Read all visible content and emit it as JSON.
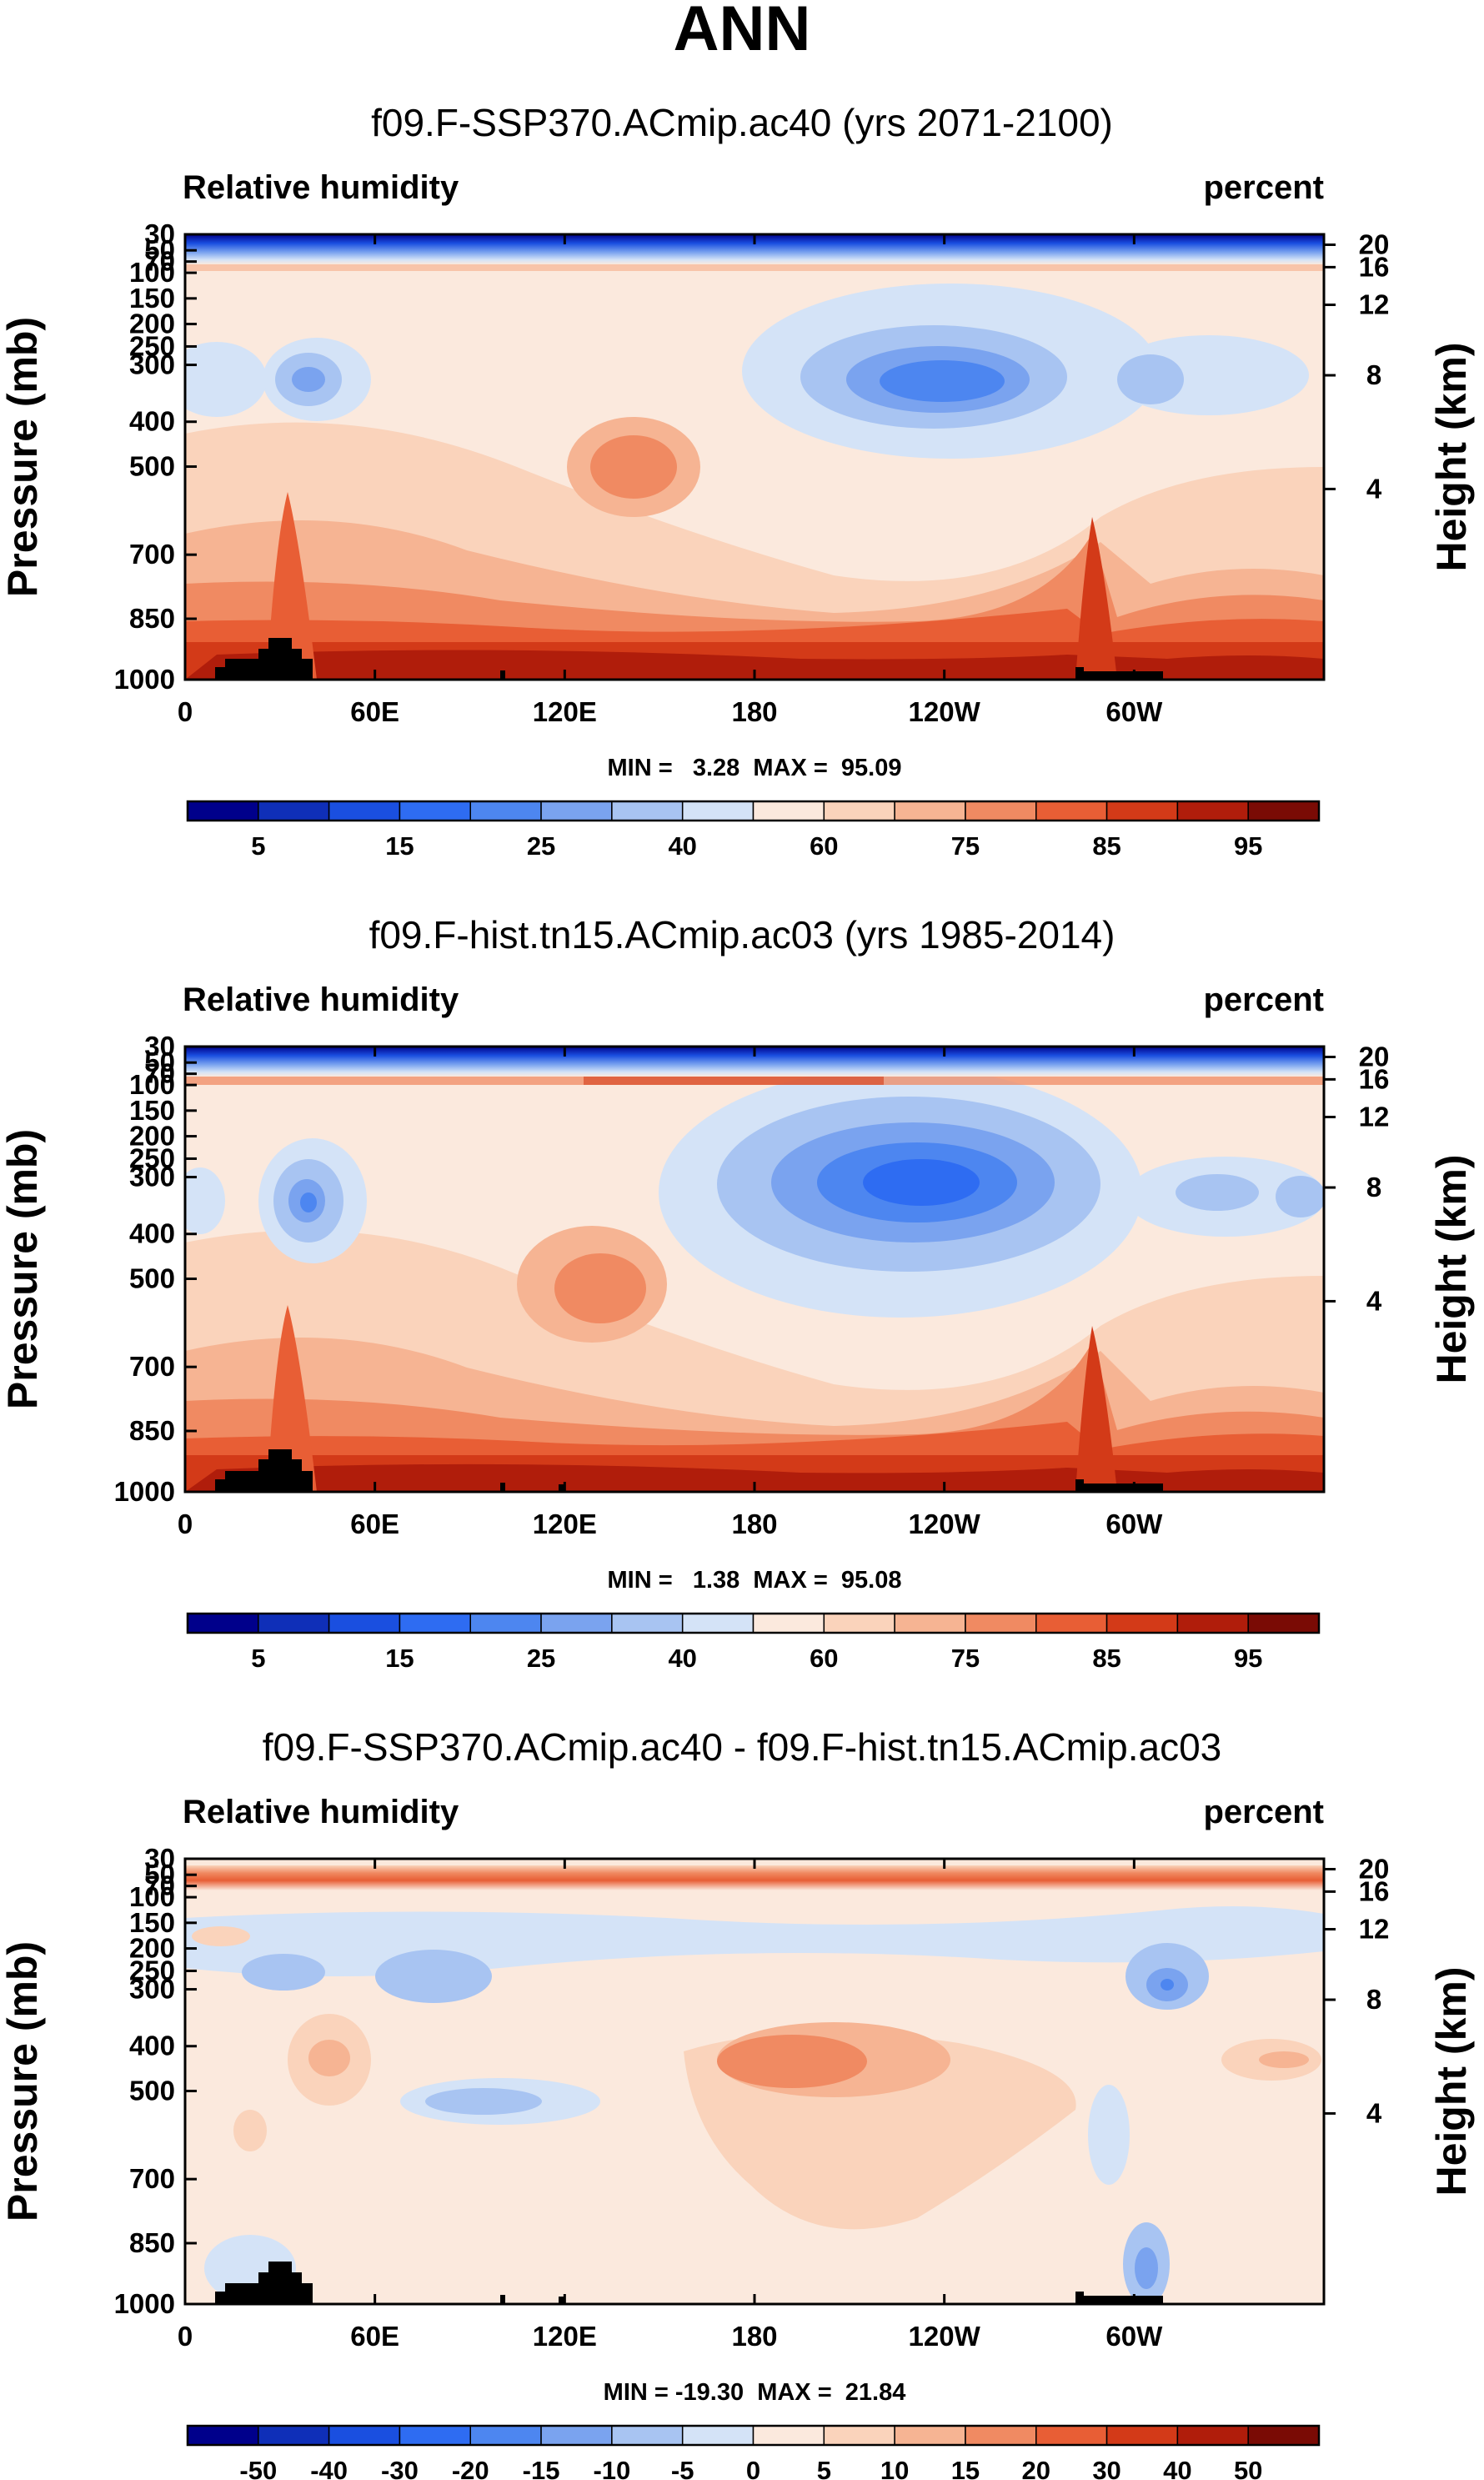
{
  "figure_title": "ANN",
  "chart_data": [
    {
      "type": "heatmap",
      "title": "f09.F-SSP370.ACmip.ac40 (yrs 2071-2100)",
      "variable_label": "Relative humidity",
      "units_label": "percent",
      "xlabel": "",
      "ylabel": "Pressure (mb)",
      "ylabel_right": "Height (km)",
      "x_ticks": [
        "0",
        "60E",
        "120E",
        "180",
        "120W",
        "60W"
      ],
      "y_ticks": [
        "30",
        "50",
        "70",
        "100",
        "150",
        "200",
        "250",
        "300",
        "400",
        "500",
        "700",
        "850",
        "1000"
      ],
      "y_right_ticks": [
        "20",
        "16",
        "12",
        "8",
        "4"
      ],
      "min_max_text": "MIN =   3.28  MAX =  95.09",
      "colorbar": {
        "levels": [
          5,
          10,
          15,
          20,
          25,
          30,
          40,
          50,
          60,
          70,
          75,
          80,
          85,
          90,
          95
        ],
        "labels": [
          "5",
          "15",
          "25",
          "40",
          "60",
          "75",
          "85",
          "95"
        ],
        "colors": [
          "#00008b",
          "#0f2fb8",
          "#1a4fe0",
          "#2e6cf2",
          "#4d86f0",
          "#7aa3ef",
          "#a8c4f2",
          "#d4e3f7",
          "#fbe9dd",
          "#fad3bb",
          "#f6b493",
          "#f08a62",
          "#e85e35",
          "#d33a18",
          "#b01d0b",
          "#7a0b05"
        ]
      }
    },
    {
      "type": "heatmap",
      "title": "f09.F-hist.tn15.ACmip.ac03 (yrs 1985-2014)",
      "variable_label": "Relative humidity",
      "units_label": "percent",
      "xlabel": "",
      "ylabel": "Pressure (mb)",
      "ylabel_right": "Height (km)",
      "x_ticks": [
        "0",
        "60E",
        "120E",
        "180",
        "120W",
        "60W"
      ],
      "y_ticks": [
        "30",
        "50",
        "70",
        "100",
        "150",
        "200",
        "250",
        "300",
        "400",
        "500",
        "700",
        "850",
        "1000"
      ],
      "y_right_ticks": [
        "20",
        "16",
        "12",
        "8",
        "4"
      ],
      "min_max_text": "MIN =   1.38  MAX =  95.08",
      "colorbar": {
        "levels": [
          5,
          10,
          15,
          20,
          25,
          30,
          40,
          50,
          60,
          70,
          75,
          80,
          85,
          90,
          95
        ],
        "labels": [
          "5",
          "15",
          "25",
          "40",
          "60",
          "75",
          "85",
          "95"
        ],
        "colors": [
          "#00008b",
          "#0f2fb8",
          "#1a4fe0",
          "#2e6cf2",
          "#4d86f0",
          "#7aa3ef",
          "#a8c4f2",
          "#d4e3f7",
          "#fbe9dd",
          "#fad3bb",
          "#f6b493",
          "#f08a62",
          "#e85e35",
          "#d33a18",
          "#b01d0b",
          "#7a0b05"
        ]
      }
    },
    {
      "type": "heatmap",
      "title": "f09.F-SSP370.ACmip.ac40 - f09.F-hist.tn15.ACmip.ac03",
      "variable_label": "Relative humidity",
      "units_label": "percent",
      "xlabel": "",
      "ylabel": "Pressure (mb)",
      "ylabel_right": "Height (km)",
      "x_ticks": [
        "0",
        "60E",
        "120E",
        "180",
        "120W",
        "60W"
      ],
      "y_ticks": [
        "30",
        "50",
        "70",
        "100",
        "150",
        "200",
        "250",
        "300",
        "400",
        "500",
        "700",
        "850",
        "1000"
      ],
      "y_right_ticks": [
        "20",
        "16",
        "12",
        "8",
        "4"
      ],
      "min_max_text": "MIN = -19.30  MAX =  21.84",
      "colorbar": {
        "levels": [
          -50,
          -40,
          -30,
          -20,
          -15,
          -10,
          -5,
          0,
          5,
          10,
          15,
          20,
          30,
          40,
          50
        ],
        "labels": [
          "-50",
          "-40",
          "-30",
          "-20",
          "-15",
          "-10",
          "-5",
          "0",
          "5",
          "10",
          "15",
          "20",
          "30",
          "40",
          "50"
        ],
        "colors": [
          "#00008b",
          "#0f2fb8",
          "#1a4fe0",
          "#2e6cf2",
          "#4d86f0",
          "#7aa3ef",
          "#a8c4f2",
          "#d4e3f7",
          "#fbe9dd",
          "#fad3bb",
          "#f6b493",
          "#f08a62",
          "#e85e35",
          "#d33a18",
          "#b01d0b",
          "#7a0b05"
        ]
      }
    }
  ]
}
